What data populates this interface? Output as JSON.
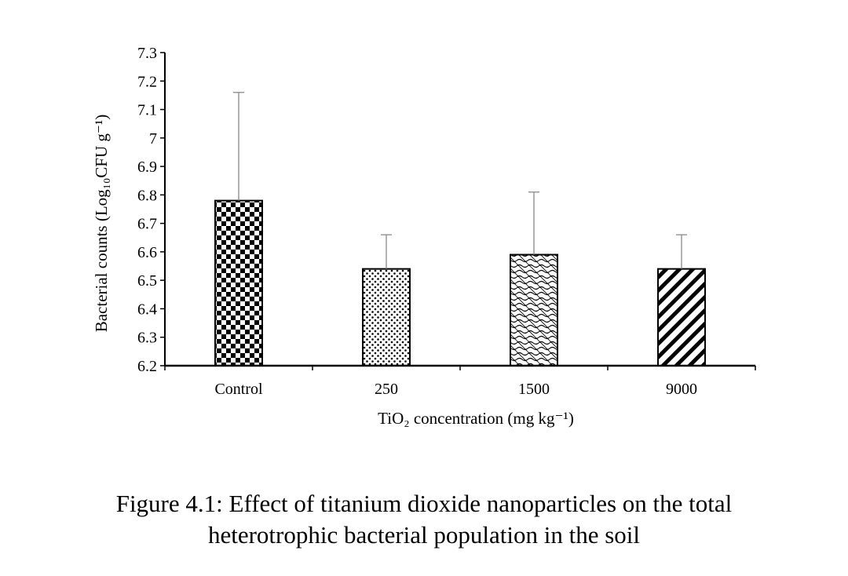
{
  "chart_data": {
    "type": "bar",
    "categories": [
      "Control",
      "250",
      "1500",
      "9000"
    ],
    "values": [
      6.78,
      6.54,
      6.59,
      6.54
    ],
    "error_upper": [
      7.16,
      6.66,
      6.81,
      6.66
    ],
    "patterns": [
      "checker",
      "dots",
      "waves",
      "diagonal"
    ],
    "xlabel": "TiO₂ concentration (mg kg⁻¹)",
    "ylabel": "Bacterial counts (Log₁₀CFU g⁻¹)",
    "ylim": [
      6.2,
      7.3
    ],
    "yticks": [
      "6.2",
      "6.3",
      "6.4",
      "6.5",
      "6.6",
      "6.7",
      "6.8",
      "6.9",
      "7",
      "7.1",
      "7.2",
      "7.3"
    ],
    "grid": false,
    "legend": "none"
  },
  "caption": {
    "line1": "Figure 4.1: Effect of titanium dioxide nanoparticles on the total",
    "line2": "heterotrophic bacterial population in the soil"
  }
}
